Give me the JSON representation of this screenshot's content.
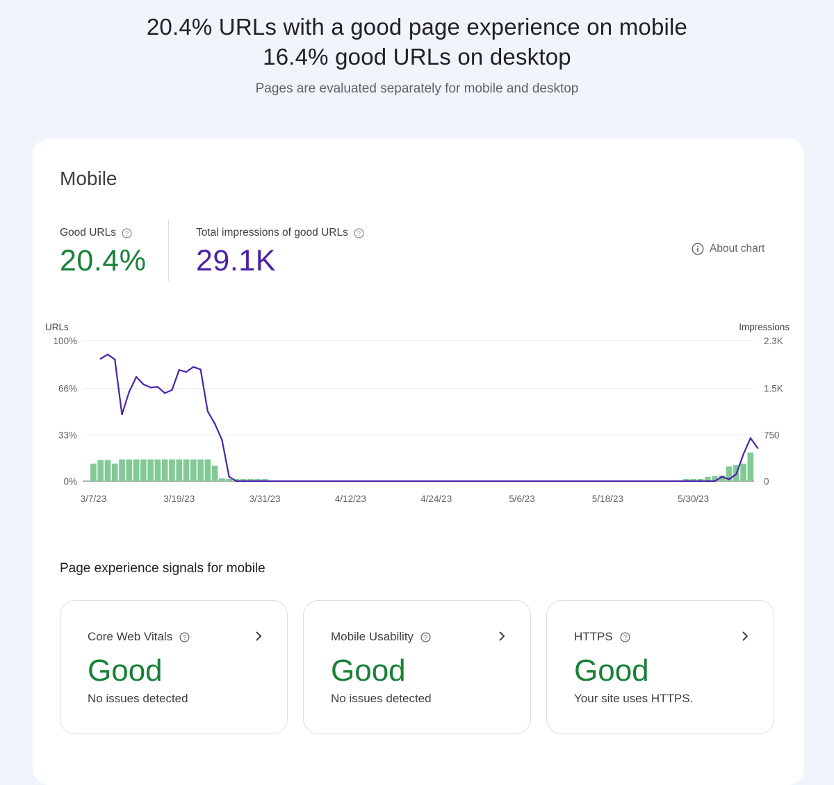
{
  "header": {
    "headline_line1": "20.4% URLs with a good page experience on mobile",
    "headline_line2": "16.4% good URLs on desktop",
    "subtitle": "Pages are evaluated separately for mobile and desktop"
  },
  "panel": {
    "title": "Mobile",
    "good_urls": {
      "label": "Good URLs",
      "value": "20.4%",
      "color": "#188038"
    },
    "impressions": {
      "label": "Total impressions of good URLs",
      "value": "29.1K",
      "color": "#4b22a8"
    },
    "about_chart_label": "About chart"
  },
  "chart_data": {
    "type": "bar",
    "title": "",
    "left_axis_label": "URLs",
    "right_axis_label": "Impressions",
    "left_ticks": [
      "0%",
      "33%",
      "66%",
      "100%"
    ],
    "left_ylim": [
      0,
      100
    ],
    "right_ticks": [
      "0",
      "750",
      "1.5K",
      "2.3K"
    ],
    "right_ylim": [
      0,
      2250
    ],
    "x_tick_labels": [
      "3/7/23",
      "3/19/23",
      "3/31/23",
      "4/12/23",
      "4/24/23",
      "5/6/23",
      "5/18/23",
      "5/30/23"
    ],
    "grid": true,
    "start_date": "2023-03-06",
    "series": [
      {
        "name": "Good URLs",
        "kind": "bar",
        "color": "#81c995",
        "axis": "left",
        "values": [
          0,
          12.5,
          15,
          15,
          12.5,
          15.5,
          15.5,
          15.5,
          15.5,
          15.5,
          15.5,
          15.5,
          15.5,
          15.5,
          15.5,
          15.5,
          15.5,
          15.5,
          11,
          2,
          1.5,
          1.5,
          1.5,
          1.5,
          1.5,
          1.5,
          0,
          0,
          0,
          0,
          0,
          0,
          0,
          0,
          0,
          0,
          0,
          0,
          0,
          0,
          0,
          0,
          0,
          0,
          0,
          0,
          0,
          0,
          0,
          0,
          0,
          0,
          0,
          0,
          0,
          0,
          0,
          0,
          0,
          0,
          0,
          0,
          0,
          0,
          0,
          0,
          0,
          0,
          0,
          0,
          0,
          0,
          0,
          0,
          0,
          0,
          0,
          0,
          0,
          0,
          0,
          0,
          0,
          0,
          1.5,
          1.5,
          1.5,
          3,
          3.5,
          4,
          10.5,
          11.5,
          12.5,
          20.4
        ]
      },
      {
        "name": "Impressions",
        "kind": "line",
        "color": "#4b22a8",
        "axis": "right",
        "x_index": [
          2,
          3,
          4,
          5,
          6,
          7,
          8,
          9,
          10,
          11,
          12,
          13,
          14,
          15,
          16,
          17,
          18,
          19,
          20,
          21,
          22,
          88,
          89,
          90,
          91,
          92,
          93,
          94
        ],
        "values": [
          1960,
          2030,
          1950,
          1070,
          1430,
          1670,
          1550,
          1500,
          1510,
          1410,
          1460,
          1780,
          1750,
          1830,
          1790,
          1120,
          920,
          660,
          70,
          0,
          0,
          0,
          70,
          30,
          110,
          430,
          690,
          530
        ]
      }
    ]
  },
  "signals": {
    "title": "Page experience signals for mobile",
    "cards": [
      {
        "title": "Core Web Vitals",
        "status": "Good",
        "description": "No issues detected"
      },
      {
        "title": "Mobile Usability",
        "status": "Good",
        "description": "No issues detected"
      },
      {
        "title": "HTTPS",
        "status": "Good",
        "description": "Your site uses HTTPS."
      }
    ]
  }
}
